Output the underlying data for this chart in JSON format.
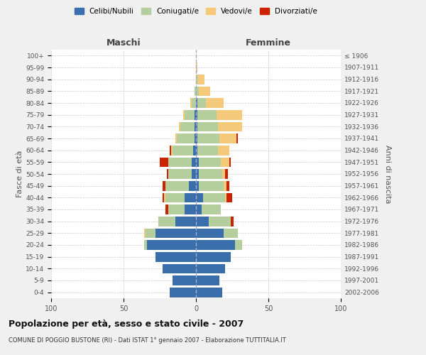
{
  "age_groups": [
    "0-4",
    "5-9",
    "10-14",
    "15-19",
    "20-24",
    "25-29",
    "30-34",
    "35-39",
    "40-44",
    "45-49",
    "50-54",
    "55-59",
    "60-64",
    "65-69",
    "70-74",
    "75-79",
    "80-84",
    "85-89",
    "90-94",
    "95-99",
    "100+"
  ],
  "birth_years": [
    "2002-2006",
    "1997-2001",
    "1992-1996",
    "1987-1991",
    "1982-1986",
    "1977-1981",
    "1972-1976",
    "1967-1971",
    "1962-1966",
    "1957-1961",
    "1952-1956",
    "1947-1951",
    "1942-1946",
    "1937-1941",
    "1932-1936",
    "1927-1931",
    "1922-1926",
    "1917-1921",
    "1912-1916",
    "1907-1911",
    "≤ 1906"
  ],
  "colors": {
    "celibi": "#3a6eaa",
    "coniugati": "#b5ce9e",
    "vedovi": "#f5c97a",
    "divorziati": "#cc2200"
  },
  "maschi": {
    "celibi": [
      18,
      16,
      23,
      28,
      34,
      28,
      14,
      8,
      8,
      5,
      3,
      3,
      2,
      1,
      1,
      1,
      0,
      0,
      0,
      0,
      0
    ],
    "coniugati": [
      0,
      0,
      0,
      0,
      2,
      7,
      12,
      11,
      13,
      16,
      16,
      16,
      14,
      12,
      10,
      7,
      3,
      1,
      0,
      0,
      0
    ],
    "vedovi": [
      0,
      0,
      0,
      0,
      0,
      1,
      0,
      0,
      1,
      0,
      0,
      0,
      1,
      1,
      1,
      1,
      1,
      0,
      0,
      0,
      0
    ],
    "divorziati": [
      0,
      0,
      0,
      0,
      0,
      0,
      0,
      2,
      1,
      2,
      1,
      6,
      1,
      0,
      0,
      0,
      0,
      0,
      0,
      0,
      0
    ]
  },
  "femmine": {
    "celibi": [
      18,
      16,
      20,
      24,
      27,
      19,
      9,
      4,
      5,
      2,
      2,
      2,
      1,
      1,
      1,
      1,
      1,
      0,
      0,
      0,
      0
    ],
    "coniugati": [
      0,
      0,
      0,
      0,
      5,
      10,
      15,
      13,
      15,
      17,
      16,
      15,
      14,
      15,
      14,
      13,
      6,
      2,
      1,
      0,
      0
    ],
    "vedovi": [
      0,
      0,
      0,
      0,
      0,
      0,
      0,
      0,
      1,
      2,
      2,
      6,
      8,
      12,
      17,
      18,
      12,
      8,
      5,
      1,
      0
    ],
    "divorziati": [
      0,
      0,
      0,
      0,
      0,
      0,
      2,
      0,
      4,
      2,
      2,
      1,
      0,
      1,
      0,
      0,
      0,
      0,
      0,
      0,
      0
    ]
  },
  "xlim": 100,
  "xticks": [
    100,
    50,
    0,
    50,
    100
  ],
  "title": "Popolazione per età, sesso e stato civile - 2007",
  "subtitle": "COMUNE DI POGGIO BUSTONE (RI) - Dati ISTAT 1° gennaio 2007 - Elaborazione TUTTITALIA.IT",
  "xlabel_left": "Maschi",
  "xlabel_right": "Femmine",
  "ylabel_left": "Fasce di età",
  "ylabel_right": "Anni di nascita",
  "legend_labels": [
    "Celibi/Nubili",
    "Coniugati/e",
    "Vedovi/e",
    "Divorziati/e"
  ],
  "bg_color": "#f0f0f0",
  "plot_bg": "#ffffff"
}
